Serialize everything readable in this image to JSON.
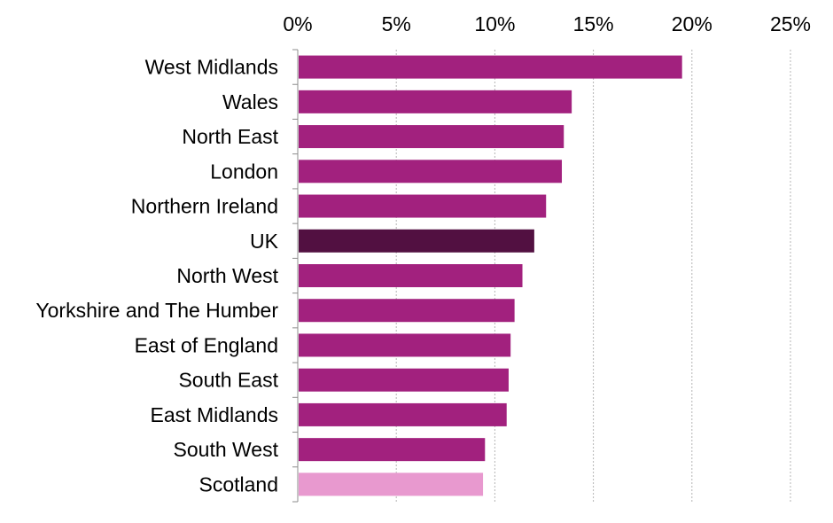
{
  "chart_data": {
    "type": "bar",
    "orientation": "horizontal",
    "title": "",
    "xlabel": "",
    "ylabel": "",
    "xlim": [
      0,
      25
    ],
    "x_ticks": [
      0,
      5,
      10,
      15,
      20,
      25
    ],
    "x_tick_labels": [
      "0%",
      "5%",
      "10%",
      "15%",
      "20%",
      "25%"
    ],
    "x_axis_position": "top",
    "grid": "vertical dashed",
    "legend": "none",
    "categories": [
      "West Midlands",
      "Wales",
      "North East",
      "London",
      "Northern Ireland",
      "UK",
      "North West",
      "Yorkshire and The Humber",
      "East of England",
      "South East",
      "East Midlands",
      "South West",
      "Scotland"
    ],
    "values": [
      19.5,
      13.9,
      13.5,
      13.4,
      12.6,
      12.0,
      11.4,
      11.0,
      10.8,
      10.7,
      10.6,
      9.5,
      9.4
    ],
    "bar_colors": [
      "#a2217e",
      "#a2217e",
      "#a2217e",
      "#a2217e",
      "#a2217e",
      "#521041",
      "#a2217e",
      "#a2217e",
      "#a2217e",
      "#a2217e",
      "#a2217e",
      "#a2217e",
      "#e899cf"
    ]
  }
}
